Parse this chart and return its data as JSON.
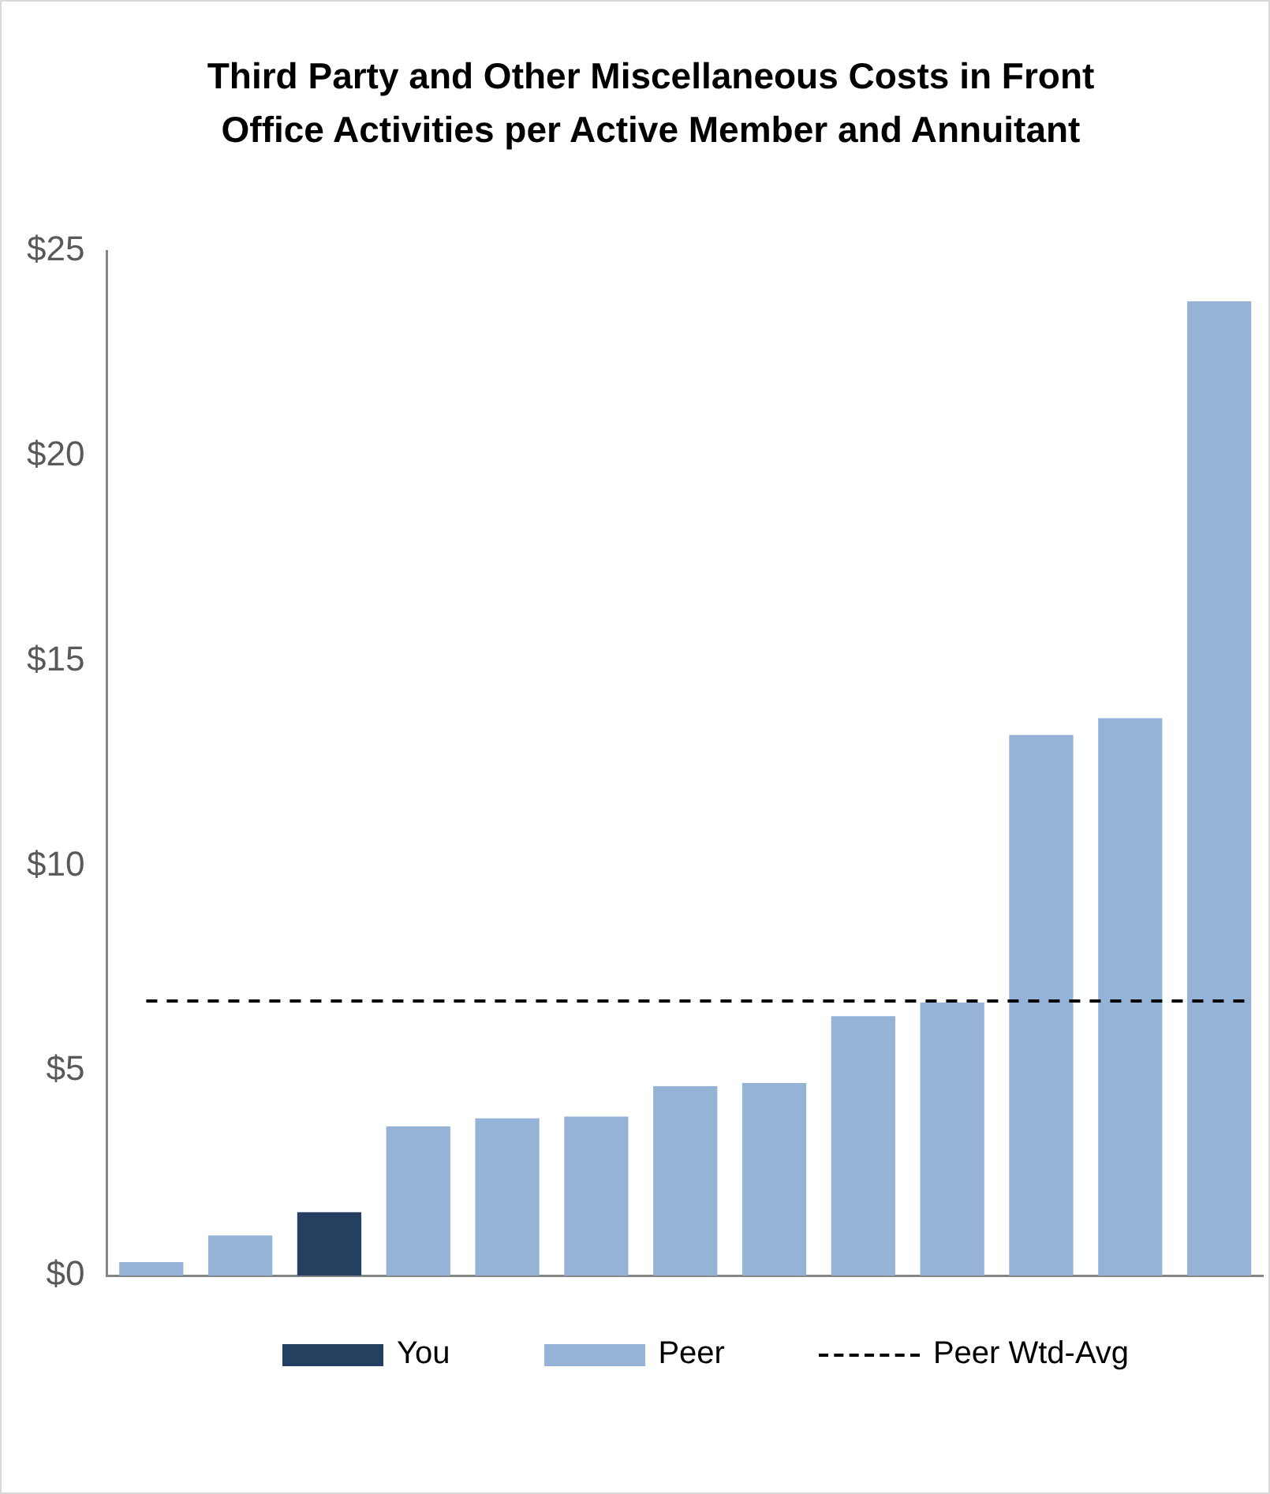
{
  "chart_data": {
    "type": "bar",
    "title": "Third Party and Other Miscellaneous Costs in Front Office Activities per Active Member and Annuitant",
    "categories": [
      null,
      null,
      null,
      null,
      null,
      null,
      null,
      null,
      null,
      null,
      null,
      null,
      null
    ],
    "series": [
      {
        "name": "You",
        "color": "#243f60",
        "values": [
          null,
          null,
          1.55,
          null,
          null,
          null,
          null,
          null,
          null,
          null,
          null,
          null,
          null
        ]
      },
      {
        "name": "Peer",
        "color": "#95b3d7",
        "values": [
          0.33,
          0.98,
          null,
          3.64,
          3.84,
          3.88,
          4.62,
          4.7,
          6.33,
          6.66,
          13.19,
          13.6,
          23.77
        ]
      }
    ],
    "ylim": [
      0,
      25
    ],
    "yticks": [
      {
        "value": 0,
        "label": "$0"
      },
      {
        "value": 5,
        "label": "$5"
      },
      {
        "value": 10,
        "label": "$10"
      },
      {
        "value": 15,
        "label": "$15"
      },
      {
        "value": 20,
        "label": "$20"
      },
      {
        "value": 25,
        "label": "$25"
      }
    ],
    "ref_lines": [
      {
        "axis": "y",
        "value": 6.7,
        "label": "Peer Wtd-Avg",
        "color": "#000000",
        "line_style": "dashed"
      }
    ],
    "grid": false,
    "legend": "bottom"
  }
}
